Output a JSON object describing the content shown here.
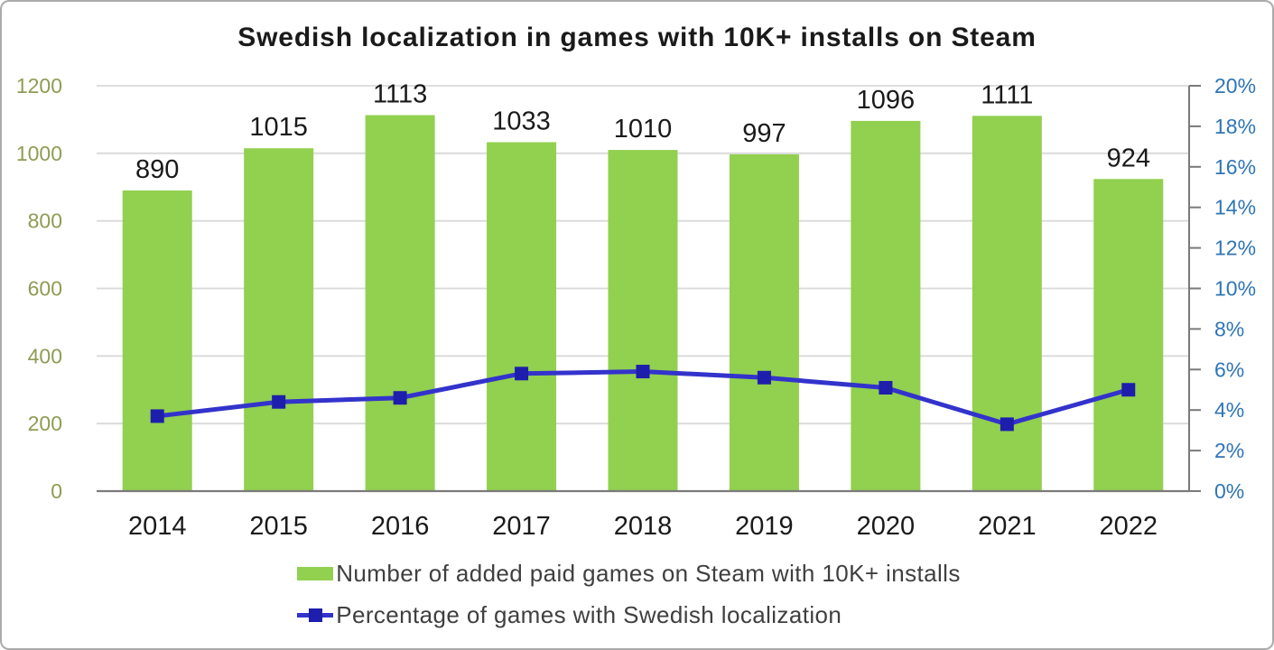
{
  "title": "Swedish localization in games with 10K+ installs on Steam",
  "chart_data": {
    "type": "combo-bar-line",
    "categories": [
      "2014",
      "2015",
      "2016",
      "2017",
      "2018",
      "2019",
      "2020",
      "2021",
      "2022"
    ],
    "series": [
      {
        "name": "Number of added paid games on Steam with 10K+ installs",
        "type": "bar",
        "axis": "left",
        "color": "#92D050",
        "values": [
          890,
          1015,
          1113,
          1033,
          1010,
          997,
          1096,
          1111,
          924
        ]
      },
      {
        "name": "Percentage of games with Swedish localization",
        "type": "line",
        "axis": "right",
        "color": "#3333CC",
        "marker": "square",
        "marker_color": "#1E1EAC",
        "values": [
          3.7,
          4.4,
          4.6,
          5.8,
          5.9,
          5.6,
          5.1,
          3.3,
          5.0
        ]
      }
    ],
    "left_axis": {
      "min": 0,
      "max": 1200,
      "step": 200,
      "labels": [
        "0",
        "200",
        "400",
        "600",
        "800",
        "1000",
        "1200"
      ],
      "color": "#8E9C53"
    },
    "right_axis": {
      "min": 0,
      "max": 20,
      "step": 2,
      "labels": [
        "0%",
        "2%",
        "4%",
        "6%",
        "8%",
        "10%",
        "12%",
        "14%",
        "16%",
        "18%",
        "20%"
      ],
      "color": "#2E75B6"
    },
    "grid": true,
    "legend_position": "bottom",
    "bar_value_labels": true
  },
  "colors": {
    "grid": "#D9D9D9",
    "axis_line": "#7A7A7A",
    "label_text": "#1A1A1A",
    "legend_text": "#3F3F3F",
    "border": "#ABABAB",
    "background": "#FFFFFF"
  }
}
